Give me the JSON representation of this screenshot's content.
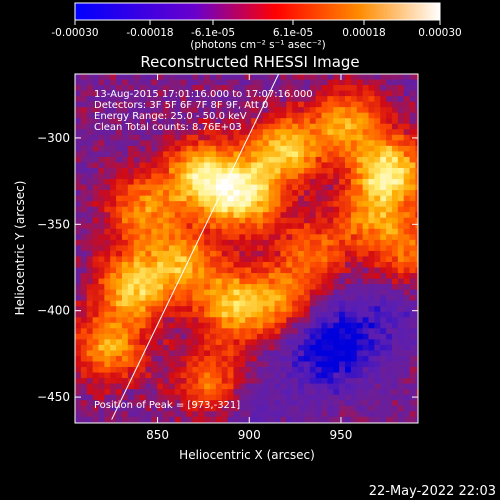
{
  "colorbar": {
    "stops": [
      "#0000ff",
      "#6a00cc",
      "#ff0000",
      "#ff8c00",
      "#ffffff"
    ],
    "tick_labels": [
      "-0.00030",
      "-0.00018",
      "-6.1e-05",
      "6.1e-05",
      "0.00018",
      "0.00030"
    ],
    "units": "(photons cm⁻² s⁻¹ asec⁻²)"
  },
  "chart_data": {
    "type": "heatmap",
    "title": "Reconstructed RHESSI Image",
    "xlabel": "Heliocentric X (arcsec)",
    "ylabel": "Heliocentric Y (arcsec)",
    "xlim": [
      805,
      992
    ],
    "ylim": [
      -465,
      -263
    ],
    "xticks": [
      850,
      900,
      950
    ],
    "yticks": [
      -300,
      -350,
      -400,
      -450
    ],
    "annotations": [
      "13-Aug-2015 17:01:16.000 to 17:07:16.000",
      "Detectors: 3F 5F 6F 7F 8F 9F, Att 0",
      "Energy Range: 25.0 - 50.0 keV",
      "Clean    Total counts: 8.76E+03"
    ],
    "peak_label": "Position of Peak = [973,-321]",
    "peak": [
      973,
      -321
    ],
    "limb_line": [
      [
        825,
        -463
      ],
      [
        916,
        -263
      ]
    ],
    "hot_regions": [
      {
        "x": 895,
        "y": -332,
        "level": 1.0
      },
      {
        "x": 872,
        "y": -320,
        "level": 0.9
      },
      {
        "x": 918,
        "y": -305,
        "level": 0.85
      },
      {
        "x": 975,
        "y": -318,
        "level": 1.0
      },
      {
        "x": 952,
        "y": -290,
        "level": 0.7
      },
      {
        "x": 835,
        "y": -385,
        "level": 0.85
      },
      {
        "x": 862,
        "y": -370,
        "level": 0.7
      },
      {
        "x": 890,
        "y": -395,
        "level": 0.8
      },
      {
        "x": 918,
        "y": -395,
        "level": 0.7
      },
      {
        "x": 840,
        "y": -340,
        "level": 0.65
      },
      {
        "x": 822,
        "y": -420,
        "level": 0.7
      },
      {
        "x": 878,
        "y": -440,
        "level": 0.6
      },
      {
        "x": 965,
        "y": -345,
        "level": 0.55
      },
      {
        "x": 985,
        "y": -365,
        "level": 0.5
      },
      {
        "x": 932,
        "y": -365,
        "level": 0.55
      }
    ],
    "cold_regions": [
      {
        "x": 945,
        "y": -425,
        "level": 1.0
      },
      {
        "x": 932,
        "y": -408,
        "level": 0.8
      },
      {
        "x": 972,
        "y": -400,
        "level": 0.6
      },
      {
        "x": 900,
        "y": -455,
        "level": 0.55
      }
    ],
    "colorbar_range": [
      -0.0003,
      0.0003
    ]
  },
  "footer": {
    "timestamp": "22-May-2022 22:03"
  }
}
